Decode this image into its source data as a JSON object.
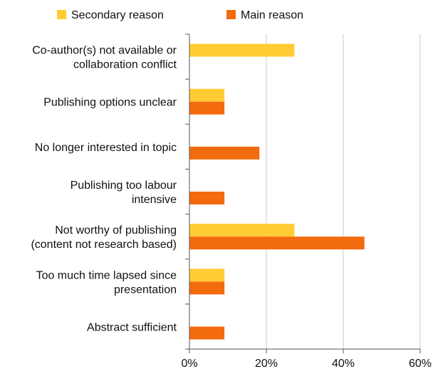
{
  "chart_data": {
    "type": "bar",
    "orientation": "horizontal",
    "categories": [
      [
        "Co-author(s) not available or",
        "collaboration conflict"
      ],
      [
        "Publishing options unclear"
      ],
      [
        "No longer interested in topic"
      ],
      [
        "Publishing too labour",
        "intensive"
      ],
      [
        "Not worthy of publishing",
        "(content not research based)"
      ],
      [
        "Too much time lapsed since",
        "presentation"
      ],
      [
        "Abstract sufficient"
      ]
    ],
    "series": [
      {
        "name": "Secondary reason",
        "color": "#FFCC33",
        "values": [
          27.3,
          9.1,
          0,
          0,
          27.3,
          9.1,
          0
        ]
      },
      {
        "name": "Main reason",
        "color": "#F26B0F",
        "values": [
          0,
          9.1,
          18.2,
          9.1,
          45.5,
          9.1,
          9.1
        ]
      }
    ],
    "xlim": [
      0,
      60
    ],
    "xticks": [
      "0%",
      "20%",
      "40%",
      "60%"
    ],
    "xtick_values": [
      0,
      20,
      40,
      60
    ],
    "grid": true,
    "legend_position": "top"
  }
}
